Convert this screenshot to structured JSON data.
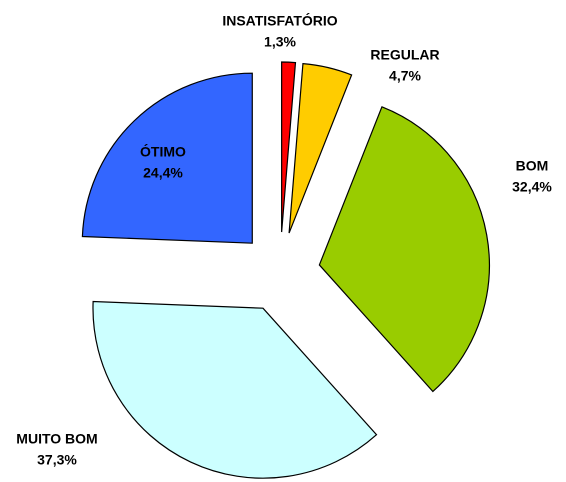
{
  "chart_data": {
    "type": "pie",
    "categories": [
      "INSATISFATÓRIO",
      "REGULAR",
      "BOM",
      "MUITO BOM",
      "ÓTIMO"
    ],
    "values": [
      1.3,
      4.7,
      32.4,
      37.3,
      24.4
    ],
    "value_labels": [
      "1,3%",
      "4,7%",
      "32,4%",
      "37,3%",
      "24,4%"
    ],
    "colors": [
      "#ff0000",
      "#ffcc00",
      "#99cc00",
      "#ccffff",
      "#3366ff"
    ]
  }
}
